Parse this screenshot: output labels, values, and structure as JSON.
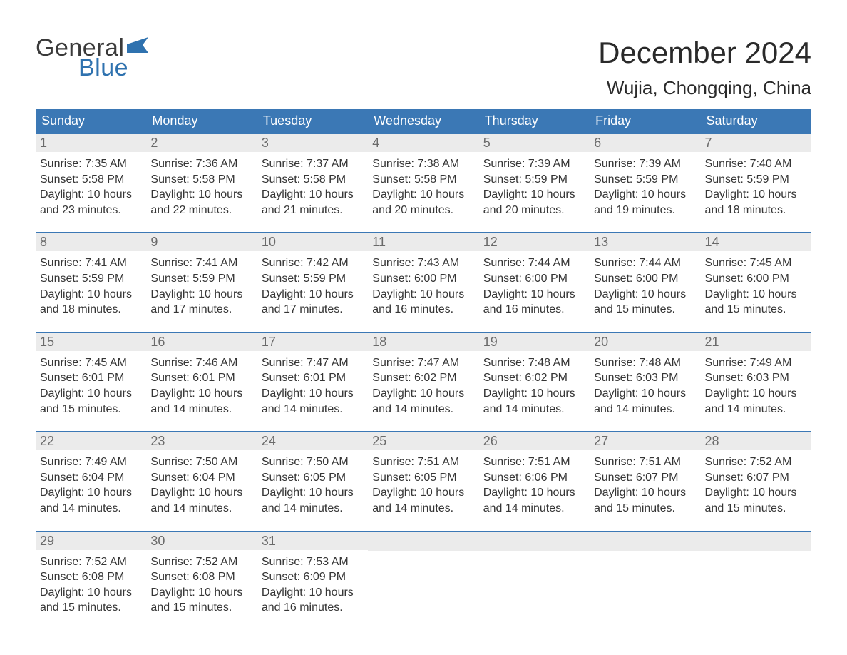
{
  "brand": {
    "word1": "General",
    "word2": "Blue",
    "word1_color": "#3a3a3a",
    "word2_color": "#2f72af",
    "flag_color": "#2f72af"
  },
  "title": "December 2024",
  "location": "Wujia, Chongqing, China",
  "colors": {
    "header_bg": "#3b78b5",
    "header_text": "#ffffff",
    "daynum_bg": "#ebebeb",
    "daynum_text": "#6a6a6a",
    "row_border": "#3b78b5",
    "body_text": "#353535",
    "page_bg": "#ffffff"
  },
  "typography": {
    "title_fontsize": 42,
    "location_fontsize": 26,
    "dow_fontsize": 18,
    "daynum_fontsize": 18,
    "body_fontsize": 16
  },
  "days_of_week": [
    "Sunday",
    "Monday",
    "Tuesday",
    "Wednesday",
    "Thursday",
    "Friday",
    "Saturday"
  ],
  "weeks": [
    [
      {
        "n": "1",
        "sunrise": "Sunrise: 7:35 AM",
        "sunset": "Sunset: 5:58 PM",
        "d1": "Daylight: 10 hours",
        "d2": "and 23 minutes."
      },
      {
        "n": "2",
        "sunrise": "Sunrise: 7:36 AM",
        "sunset": "Sunset: 5:58 PM",
        "d1": "Daylight: 10 hours",
        "d2": "and 22 minutes."
      },
      {
        "n": "3",
        "sunrise": "Sunrise: 7:37 AM",
        "sunset": "Sunset: 5:58 PM",
        "d1": "Daylight: 10 hours",
        "d2": "and 21 minutes."
      },
      {
        "n": "4",
        "sunrise": "Sunrise: 7:38 AM",
        "sunset": "Sunset: 5:58 PM",
        "d1": "Daylight: 10 hours",
        "d2": "and 20 minutes."
      },
      {
        "n": "5",
        "sunrise": "Sunrise: 7:39 AM",
        "sunset": "Sunset: 5:59 PM",
        "d1": "Daylight: 10 hours",
        "d2": "and 20 minutes."
      },
      {
        "n": "6",
        "sunrise": "Sunrise: 7:39 AM",
        "sunset": "Sunset: 5:59 PM",
        "d1": "Daylight: 10 hours",
        "d2": "and 19 minutes."
      },
      {
        "n": "7",
        "sunrise": "Sunrise: 7:40 AM",
        "sunset": "Sunset: 5:59 PM",
        "d1": "Daylight: 10 hours",
        "d2": "and 18 minutes."
      }
    ],
    [
      {
        "n": "8",
        "sunrise": "Sunrise: 7:41 AM",
        "sunset": "Sunset: 5:59 PM",
        "d1": "Daylight: 10 hours",
        "d2": "and 18 minutes."
      },
      {
        "n": "9",
        "sunrise": "Sunrise: 7:41 AM",
        "sunset": "Sunset: 5:59 PM",
        "d1": "Daylight: 10 hours",
        "d2": "and 17 minutes."
      },
      {
        "n": "10",
        "sunrise": "Sunrise: 7:42 AM",
        "sunset": "Sunset: 5:59 PM",
        "d1": "Daylight: 10 hours",
        "d2": "and 17 minutes."
      },
      {
        "n": "11",
        "sunrise": "Sunrise: 7:43 AM",
        "sunset": "Sunset: 6:00 PM",
        "d1": "Daylight: 10 hours",
        "d2": "and 16 minutes."
      },
      {
        "n": "12",
        "sunrise": "Sunrise: 7:44 AM",
        "sunset": "Sunset: 6:00 PM",
        "d1": "Daylight: 10 hours",
        "d2": "and 16 minutes."
      },
      {
        "n": "13",
        "sunrise": "Sunrise: 7:44 AM",
        "sunset": "Sunset: 6:00 PM",
        "d1": "Daylight: 10 hours",
        "d2": "and 15 minutes."
      },
      {
        "n": "14",
        "sunrise": "Sunrise: 7:45 AM",
        "sunset": "Sunset: 6:00 PM",
        "d1": "Daylight: 10 hours",
        "d2": "and 15 minutes."
      }
    ],
    [
      {
        "n": "15",
        "sunrise": "Sunrise: 7:45 AM",
        "sunset": "Sunset: 6:01 PM",
        "d1": "Daylight: 10 hours",
        "d2": "and 15 minutes."
      },
      {
        "n": "16",
        "sunrise": "Sunrise: 7:46 AM",
        "sunset": "Sunset: 6:01 PM",
        "d1": "Daylight: 10 hours",
        "d2": "and 14 minutes."
      },
      {
        "n": "17",
        "sunrise": "Sunrise: 7:47 AM",
        "sunset": "Sunset: 6:01 PM",
        "d1": "Daylight: 10 hours",
        "d2": "and 14 minutes."
      },
      {
        "n": "18",
        "sunrise": "Sunrise: 7:47 AM",
        "sunset": "Sunset: 6:02 PM",
        "d1": "Daylight: 10 hours",
        "d2": "and 14 minutes."
      },
      {
        "n": "19",
        "sunrise": "Sunrise: 7:48 AM",
        "sunset": "Sunset: 6:02 PM",
        "d1": "Daylight: 10 hours",
        "d2": "and 14 minutes."
      },
      {
        "n": "20",
        "sunrise": "Sunrise: 7:48 AM",
        "sunset": "Sunset: 6:03 PM",
        "d1": "Daylight: 10 hours",
        "d2": "and 14 minutes."
      },
      {
        "n": "21",
        "sunrise": "Sunrise: 7:49 AM",
        "sunset": "Sunset: 6:03 PM",
        "d1": "Daylight: 10 hours",
        "d2": "and 14 minutes."
      }
    ],
    [
      {
        "n": "22",
        "sunrise": "Sunrise: 7:49 AM",
        "sunset": "Sunset: 6:04 PM",
        "d1": "Daylight: 10 hours",
        "d2": "and 14 minutes."
      },
      {
        "n": "23",
        "sunrise": "Sunrise: 7:50 AM",
        "sunset": "Sunset: 6:04 PM",
        "d1": "Daylight: 10 hours",
        "d2": "and 14 minutes."
      },
      {
        "n": "24",
        "sunrise": "Sunrise: 7:50 AM",
        "sunset": "Sunset: 6:05 PM",
        "d1": "Daylight: 10 hours",
        "d2": "and 14 minutes."
      },
      {
        "n": "25",
        "sunrise": "Sunrise: 7:51 AM",
        "sunset": "Sunset: 6:05 PM",
        "d1": "Daylight: 10 hours",
        "d2": "and 14 minutes."
      },
      {
        "n": "26",
        "sunrise": "Sunrise: 7:51 AM",
        "sunset": "Sunset: 6:06 PM",
        "d1": "Daylight: 10 hours",
        "d2": "and 14 minutes."
      },
      {
        "n": "27",
        "sunrise": "Sunrise: 7:51 AM",
        "sunset": "Sunset: 6:07 PM",
        "d1": "Daylight: 10 hours",
        "d2": "and 15 minutes."
      },
      {
        "n": "28",
        "sunrise": "Sunrise: 7:52 AM",
        "sunset": "Sunset: 6:07 PM",
        "d1": "Daylight: 10 hours",
        "d2": "and 15 minutes."
      }
    ],
    [
      {
        "n": "29",
        "sunrise": "Sunrise: 7:52 AM",
        "sunset": "Sunset: 6:08 PM",
        "d1": "Daylight: 10 hours",
        "d2": "and 15 minutes."
      },
      {
        "n": "30",
        "sunrise": "Sunrise: 7:52 AM",
        "sunset": "Sunset: 6:08 PM",
        "d1": "Daylight: 10 hours",
        "d2": "and 15 minutes."
      },
      {
        "n": "31",
        "sunrise": "Sunrise: 7:53 AM",
        "sunset": "Sunset: 6:09 PM",
        "d1": "Daylight: 10 hours",
        "d2": "and 16 minutes."
      },
      null,
      null,
      null,
      null
    ]
  ]
}
